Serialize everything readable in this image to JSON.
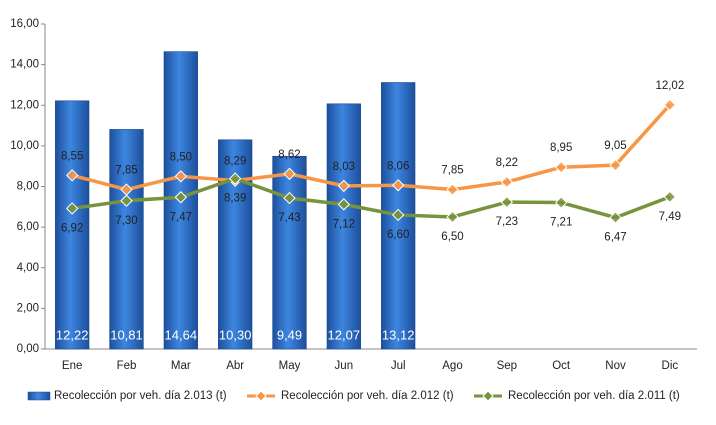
{
  "chart_data": {
    "type": "combo",
    "categories": [
      "Ene",
      "Feb",
      "Mar",
      "Abr",
      "May",
      "Jun",
      "Jul",
      "Ago",
      "Sep",
      "Oct",
      "Nov",
      "Dic"
    ],
    "ylim": [
      0,
      16
    ],
    "yticks": [
      {
        "value": 0,
        "label": "0,00"
      },
      {
        "value": 2,
        "label": "2,00"
      },
      {
        "value": 4,
        "label": "4,00"
      },
      {
        "value": 6,
        "label": "6,00"
      },
      {
        "value": 8,
        "label": "8,00"
      },
      {
        "value": 10,
        "label": "10,00"
      },
      {
        "value": 12,
        "label": "12,00"
      },
      {
        "value": 14,
        "label": "14,00"
      },
      {
        "value": 16,
        "label": "16,00"
      }
    ],
    "legend": "bottom",
    "series": [
      {
        "name": "Recolección por veh. día 2.013 (t)",
        "type": "bar",
        "color": "#2e6fc6",
        "values": [
          12.22,
          10.81,
          14.64,
          10.3,
          9.49,
          12.07,
          13.12,
          null,
          null,
          null,
          null,
          null
        ],
        "value_labels": [
          "12,22",
          "10,81",
          "14,64",
          "10,30",
          "9,49",
          "12,07",
          "13,12",
          null,
          null,
          null,
          null,
          null
        ]
      },
      {
        "name": "Recolección por veh. día 2.012 (t)",
        "type": "line",
        "color": "#f79646",
        "values": [
          8.55,
          7.85,
          8.5,
          8.29,
          8.62,
          8.03,
          8.06,
          7.85,
          8.22,
          8.95,
          9.05,
          12.02
        ],
        "value_labels": [
          "8,55",
          "7,85",
          "8,50",
          "8,29",
          "8,62",
          "8,03",
          "8,06",
          "7,85",
          "8,22",
          "8,95",
          "9,05",
          "12,02"
        ]
      },
      {
        "name": "Recolección por veh. día 2.011 (t)",
        "type": "line",
        "color": "#77933c",
        "values": [
          6.92,
          7.3,
          7.47,
          8.39,
          7.43,
          7.12,
          6.6,
          6.5,
          7.23,
          7.21,
          6.47,
          7.49
        ],
        "value_labels": [
          "6,92",
          "7,30",
          "7,47",
          "8,39",
          "7,43",
          "7,12",
          "6,60",
          "6,50",
          "7,23",
          "7,21",
          "6,47",
          "7,49"
        ]
      }
    ]
  }
}
